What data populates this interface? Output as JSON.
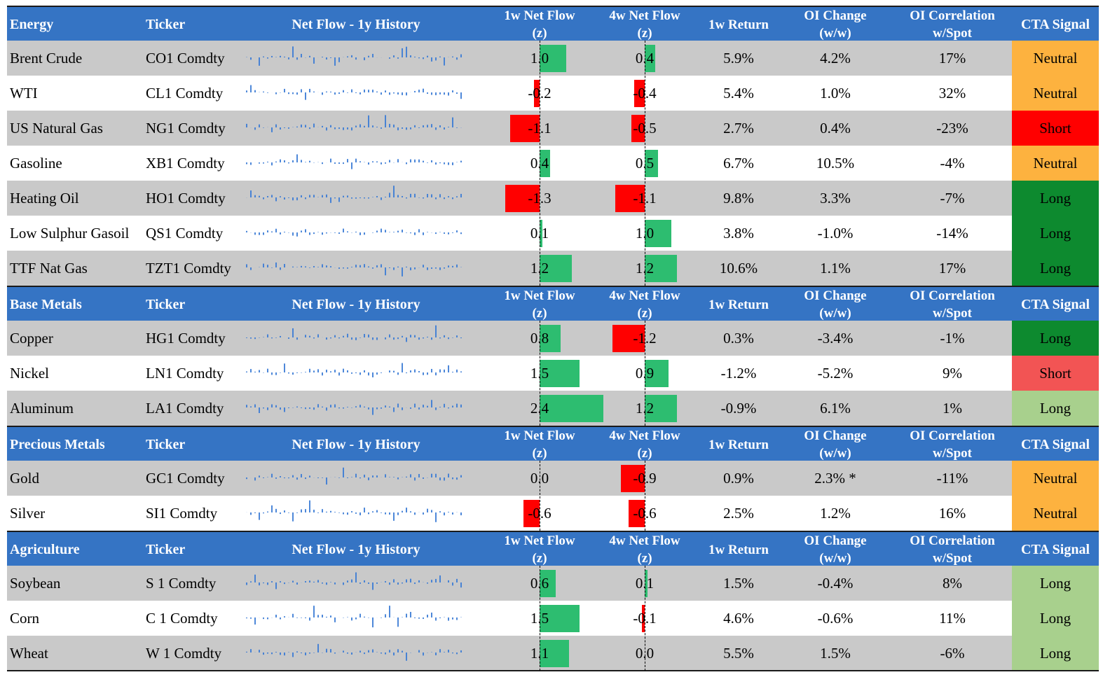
{
  "colors": {
    "header_bg": "#3574c4",
    "row_gray": "#c9c9c9",
    "pos_bar": "#2dbd70",
    "neg_bar": "#ff0000",
    "spark": "#3a7bd5",
    "cta": {
      "Neutral": "#fdb23f",
      "Short": "#ff0000",
      "Short-light": "#f25454",
      "Long": "#0d8a2f",
      "Long-light": "#a8d08d"
    }
  },
  "headers": {
    "ticker": "Ticker",
    "history": "Net Flow - 1y History",
    "flow1w_a": "1w Net Flow",
    "flow1w_b": "(z)",
    "flow4w_a": "4w Net Flow",
    "flow4w_b": "(z)",
    "ret": "1w Return",
    "oi_a": "OI Change",
    "oi_b": "(w/w)",
    "cor_a": "OI Correlation",
    "cor_b": "w/Spot",
    "cta": "CTA Signal"
  },
  "sections": [
    {
      "name": "Energy",
      "rows": [
        {
          "name": "Brent Crude",
          "ticker": "CO1 Comdty",
          "flow_1w": 1.0,
          "flow_1w_label": "1.0",
          "flow_4w": 0.4,
          "flow_4w_label": "0.4",
          "ret": "5.9%",
          "oi": "4.2%",
          "cor": "17%",
          "cta": "Neutral",
          "cta_color": "Neutral"
        },
        {
          "name": "WTI",
          "ticker": "CL1 Comdty",
          "flow_1w": -0.2,
          "flow_1w_label": "-0.2",
          "flow_4w": -0.4,
          "flow_4w_label": "-0.4",
          "ret": "5.4%",
          "oi": "1.0%",
          "cor": "32%",
          "cta": "Neutral",
          "cta_color": "Neutral"
        },
        {
          "name": "US Natural Gas",
          "ticker": "NG1 Comdty",
          "flow_1w": -1.1,
          "flow_1w_label": "-1.1",
          "flow_4w": -0.5,
          "flow_4w_label": "-0.5",
          "ret": "2.7%",
          "oi": "0.4%",
          "cor": "-23%",
          "cta": "Short",
          "cta_color": "Short"
        },
        {
          "name": "Gasoline",
          "ticker": "XB1 Comdty",
          "flow_1w": 0.4,
          "flow_1w_label": "0.4",
          "flow_4w": 0.5,
          "flow_4w_label": "0.5",
          "ret": "6.7%",
          "oi": "10.5%",
          "cor": "-4%",
          "cta": "Neutral",
          "cta_color": "Neutral"
        },
        {
          "name": "Heating Oil",
          "ticker": "HO1 Comdty",
          "flow_1w": -1.3,
          "flow_1w_label": "-1.3",
          "flow_4w": -1.1,
          "flow_4w_label": "-1.1",
          "ret": "9.8%",
          "oi": "3.3%",
          "cor": "-7%",
          "cta": "Long",
          "cta_color": "Long"
        },
        {
          "name": "Low Sulphur Gasoil",
          "ticker": "QS1 Comdty",
          "flow_1w": 0.1,
          "flow_1w_label": "0.1",
          "flow_4w": 1.0,
          "flow_4w_label": "1.0",
          "ret": "3.8%",
          "oi": "-1.0%",
          "cor": "-14%",
          "cta": "Long",
          "cta_color": "Long"
        },
        {
          "name": "TTF Nat Gas",
          "ticker": "TZT1 Comdty",
          "flow_1w": 1.2,
          "flow_1w_label": "1.2",
          "flow_4w": 1.2,
          "flow_4w_label": "1.2",
          "ret": "10.6%",
          "oi": "1.1%",
          "cor": "17%",
          "cta": "Long",
          "cta_color": "Long"
        }
      ]
    },
    {
      "name": "Base Metals",
      "rows": [
        {
          "name": "Copper",
          "ticker": "HG1 Comdty",
          "flow_1w": 0.8,
          "flow_1w_label": "0.8",
          "flow_4w": -1.2,
          "flow_4w_label": "-1.2",
          "ret": "0.3%",
          "oi": "-3.4%",
          "cor": "-1%",
          "cta": "Long",
          "cta_color": "Long"
        },
        {
          "name": "Nickel",
          "ticker": "LN1 Comdty",
          "flow_1w": 1.5,
          "flow_1w_label": "1.5",
          "flow_4w": 0.9,
          "flow_4w_label": "0.9",
          "ret": "-1.2%",
          "oi": "-5.2%",
          "cor": "9%",
          "cta": "Short",
          "cta_color": "Short-light"
        },
        {
          "name": "Aluminum",
          "ticker": "LA1 Comdty",
          "flow_1w": 2.4,
          "flow_1w_label": "2.4",
          "flow_4w": 1.2,
          "flow_4w_label": "1.2",
          "ret": "-0.9%",
          "oi": "6.1%",
          "cor": "1%",
          "cta": "Long",
          "cta_color": "Long-light"
        }
      ]
    },
    {
      "name": "Precious Metals",
      "rows": [
        {
          "name": "Gold",
          "ticker": "GC1 Comdty",
          "flow_1w": 0.0,
          "flow_1w_label": "0.0",
          "flow_4w": -0.9,
          "flow_4w_label": "-0.9",
          "ret": "0.9%",
          "oi": "2.3% *",
          "cor": "-11%",
          "cta": "Neutral",
          "cta_color": "Neutral"
        },
        {
          "name": "Silver",
          "ticker": "SI1 Comdty",
          "flow_1w": -0.6,
          "flow_1w_label": "-0.6",
          "flow_4w": -0.6,
          "flow_4w_label": "-0.6",
          "ret": "2.5%",
          "oi": "1.2%",
          "cor": "16%",
          "cta": "Neutral",
          "cta_color": "Neutral"
        }
      ]
    },
    {
      "name": "Agriculture",
      "rows": [
        {
          "name": "Soybean",
          "ticker": "S 1 Comdty",
          "flow_1w": 0.6,
          "flow_1w_label": "0.6",
          "flow_4w": 0.1,
          "flow_4w_label": "0.1",
          "ret": "1.5%",
          "oi": "-0.4%",
          "cor": "8%",
          "cta": "Long",
          "cta_color": "Long-light"
        },
        {
          "name": "Corn",
          "ticker": "C 1 Comdty",
          "flow_1w": 1.5,
          "flow_1w_label": "1.5",
          "flow_4w": -0.1,
          "flow_4w_label": "-0.1",
          "ret": "4.6%",
          "oi": "-0.6%",
          "cor": "11%",
          "cta": "Long",
          "cta_color": "Long-light"
        },
        {
          "name": "Wheat",
          "ticker": "W 1 Comdty",
          "flow_1w": 1.1,
          "flow_1w_label": "1.1",
          "flow_4w": 0.0,
          "flow_4w_label": "0.0",
          "ret": "5.5%",
          "oi": "1.5%",
          "cor": "-6%",
          "cta": "Long",
          "cta_color": "Long-light"
        }
      ]
    }
  ]
}
